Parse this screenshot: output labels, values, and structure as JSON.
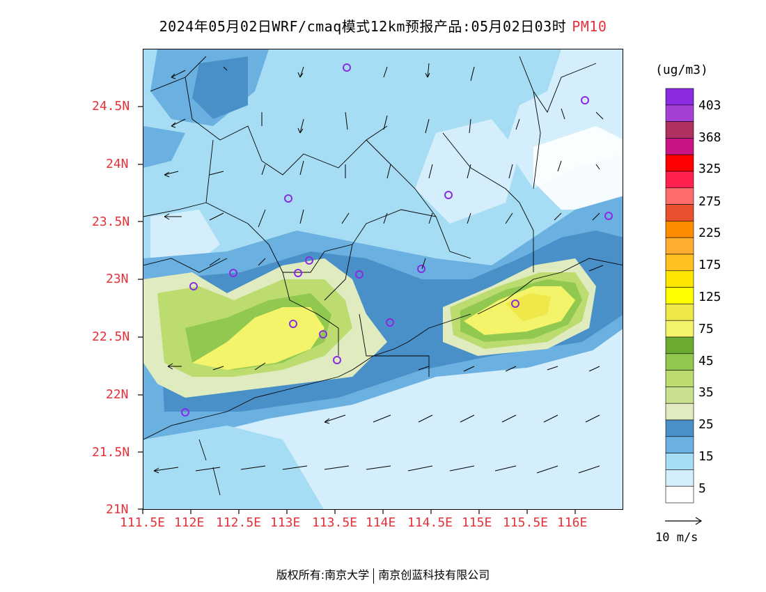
{
  "title": {
    "main": "2024年05月02日WRF/cmaq模式12km预报产品:05月02日03时",
    "pollutant": "PM10"
  },
  "axes": {
    "y_ticks": [
      "24.5N",
      "24N",
      "23.5N",
      "23N",
      "22.5N",
      "22N",
      "21.5N",
      "21N"
    ],
    "x_ticks": [
      "111.5E",
      "112E",
      "112.5E",
      "113E",
      "113.5E",
      "114E",
      "114.5E",
      "115E",
      "115.5E",
      "116E"
    ]
  },
  "colorbar": {
    "unit": "(ug/m3)",
    "labels": [
      "403",
      "368",
      "325",
      "275",
      "225",
      "175",
      "125",
      "75",
      "45",
      "35",
      "25",
      "15",
      "5"
    ],
    "colors": [
      "#8a2be2",
      "#a53fd6",
      "#b03060",
      "#c71585",
      "#ff0000",
      "#ff2050",
      "#ff6a6a",
      "#e85030",
      "#ff8c00",
      "#ffae30",
      "#ffc020",
      "#ffe600",
      "#ffff00",
      "#f0e84a",
      "#f4f46a",
      "#6aaa30",
      "#90c850",
      "#bcdc70",
      "#c8e090",
      "#e0ecc0",
      "#4a90c8",
      "#6ab0e0",
      "#a6dcf4",
      "#d4eefc",
      "#ffffff"
    ]
  },
  "wind_reference": {
    "label": "10 m/s"
  },
  "copyright": {
    "left": "版权所有:南京大学",
    "right": "南京创蓝科技有限公司"
  },
  "map": {
    "lon_range": [
      111.5,
      116.5
    ],
    "lat_range": [
      21.0,
      25.0
    ],
    "station_markers": "purple-circles",
    "regions": [
      "very-light-blue",
      "light-blue",
      "medium-blue",
      "blue",
      "pale-green",
      "green",
      "yellow"
    ]
  }
}
